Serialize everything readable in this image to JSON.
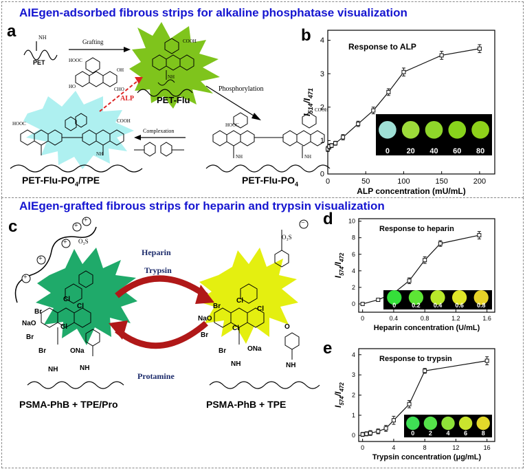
{
  "section1": {
    "title": "AIEgen-adsorbed fibrous strips for alkaline phosphatase visualization"
  },
  "section2": {
    "title": "AIEgen-grafted fibrous strips for heparin and trypsin visualization"
  },
  "panel_a": {
    "label": "a",
    "grafting": "Grafting",
    "pet": "PET",
    "pet_flu": "PET-Flu",
    "phosphorylation": "Phosphorylation",
    "complexation": "Complexation",
    "alp": "ALP",
    "pet_flu_po4": "PET-Flu-PO",
    "pet_flu_po4_tpe": "PET-Flu-PO",
    "tpe_suffix": "/TPE",
    "sub4": "4",
    "nh": "NH",
    "hooc": "HOOC",
    "cooh": "COOH",
    "oh": "OH",
    "cho": "CHO",
    "ho": "HO",
    "o": "O"
  },
  "panel_c": {
    "label": "c",
    "heparin": "Heparin",
    "trypsin": "Trypsin",
    "protamine": "Protamine",
    "left_caption": "PSMA-PhB + TPE/Pro",
    "right_caption": "PSMA-PhB + TPE",
    "nao": "NaO",
    "br": "Br",
    "cl": "Cl",
    "ona": "ONa",
    "o": "O",
    "nh": "NH",
    "so3": "O₃S",
    "plus": "+",
    "minus": "−"
  },
  "colors": {
    "header": "#1515d0",
    "alp_arrow": "#dd2222",
    "cycle_arrow": "#b01818",
    "green_burst": "#7fc41c",
    "cyan_burst": "#aef0f0",
    "teal_burst": "#1faa6a",
    "yellow_burst": "#e4ef10"
  },
  "chart_data": [
    {
      "panel": "b",
      "type": "line",
      "annotation": "Response to ALP",
      "xlabel": "ALP concentration (mU/mL)",
      "ylabel_main": "I",
      "ylabel_sub1": "514",
      "ylabel_sep": "/I",
      "ylabel_sub2": "471",
      "xlim": [
        0,
        220
      ],
      "ylim": [
        0,
        4.3
      ],
      "xticks": [
        0,
        50,
        100,
        150,
        200
      ],
      "yticks": [
        0,
        1,
        2,
        3,
        4
      ],
      "x": [
        0,
        2,
        5,
        10,
        20,
        40,
        60,
        80,
        100,
        150,
        200
      ],
      "y": [
        0.75,
        0.82,
        0.85,
        0.92,
        1.1,
        1.5,
        1.9,
        2.45,
        3.05,
        3.55,
        3.75
      ],
      "err": [
        0.08,
        0.08,
        0.06,
        0.06,
        0.08,
        0.08,
        0.1,
        0.1,
        0.12,
        0.12,
        0.12
      ],
      "inset_labels": [
        "0",
        "20",
        "40",
        "60",
        "80"
      ],
      "inset_colors": [
        "#9fe0d6",
        "#9ddc3a",
        "#8fd62a",
        "#88d41c",
        "#8ed01a"
      ]
    },
    {
      "panel": "d",
      "type": "line",
      "annotation": "Response to heparin",
      "xlabel": "Heparin concentration (U/mL)",
      "ylabel_main": "I",
      "ylabel_sub1": "574",
      "ylabel_sep": "/I",
      "ylabel_sub2": "472",
      "xlim": [
        -0.05,
        1.7
      ],
      "ylim": [
        -1,
        10.3
      ],
      "xticks": [
        0,
        0.4,
        0.8,
        1.2,
        1.6
      ],
      "yticks": [
        0,
        2,
        4,
        6,
        8,
        10
      ],
      "x": [
        0,
        0.2,
        0.4,
        0.6,
        0.8,
        1.0,
        1.5
      ],
      "y": [
        0.0,
        0.5,
        1.3,
        2.8,
        5.3,
        7.3,
        8.3
      ],
      "err": [
        0.15,
        0.2,
        0.25,
        0.35,
        0.4,
        0.35,
        0.45
      ],
      "inset_labels": [
        "0",
        "0.2",
        "0.4",
        "0.6",
        "0.8"
      ],
      "inset_colors": [
        "#35e03a",
        "#5de535",
        "#b8e82a",
        "#dfe628",
        "#e6d228"
      ]
    },
    {
      "panel": "e",
      "type": "line",
      "annotation": "Response to trypsin",
      "xlabel": "Trypsin concentration (μg/mL)",
      "ylabel_main": "I",
      "ylabel_sub1": "574",
      "ylabel_sep": "/I",
      "ylabel_sub2": "472",
      "xlim": [
        -0.5,
        17
      ],
      "ylim": [
        -0.3,
        4.3
      ],
      "xticks": [
        0,
        4,
        8,
        12,
        16
      ],
      "yticks": [
        0,
        1,
        2,
        3,
        4
      ],
      "x": [
        0,
        0.5,
        1,
        2,
        3,
        4,
        6,
        8,
        16
      ],
      "y": [
        0.05,
        0.08,
        0.12,
        0.2,
        0.35,
        0.75,
        1.55,
        3.2,
        3.7
      ],
      "err": [
        0.1,
        0.1,
        0.12,
        0.12,
        0.15,
        0.2,
        0.18,
        0.12,
        0.2
      ],
      "inset_labels": [
        "0",
        "2",
        "4",
        "6",
        "8"
      ],
      "inset_colors": [
        "#3fdf55",
        "#55e24a",
        "#8fe238",
        "#c9e42e",
        "#e3d82a"
      ]
    }
  ]
}
